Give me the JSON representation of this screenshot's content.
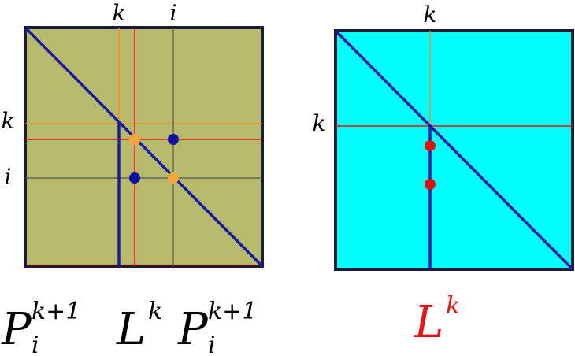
{
  "left_panel": {
    "top_labels": [
      "k",
      "i"
    ],
    "side_labels": [
      "k",
      "i"
    ],
    "caption": {
      "base1": "P",
      "sup1": "k+1",
      "sub1": "i",
      "middle": "L",
      "middle_sup": "k",
      "base2": "P",
      "sup2": "k+1",
      "sub2": "i"
    }
  },
  "right_panel": {
    "top_label": "k",
    "side_label": "k",
    "caption": {
      "base": "L",
      "sup": "k"
    }
  },
  "colors": {
    "olive_fill": "#b7ba6b",
    "cyan_fill": "#00ffff",
    "frame": "#1b1b3a",
    "diagonal": "#1a1aa8",
    "orange": "#ff8c1a",
    "red": "#ee1111",
    "gray": "#555555",
    "orange_dot": "#f5a63a",
    "blue_dot": "#1010a0",
    "red_dot": "#e01010"
  }
}
